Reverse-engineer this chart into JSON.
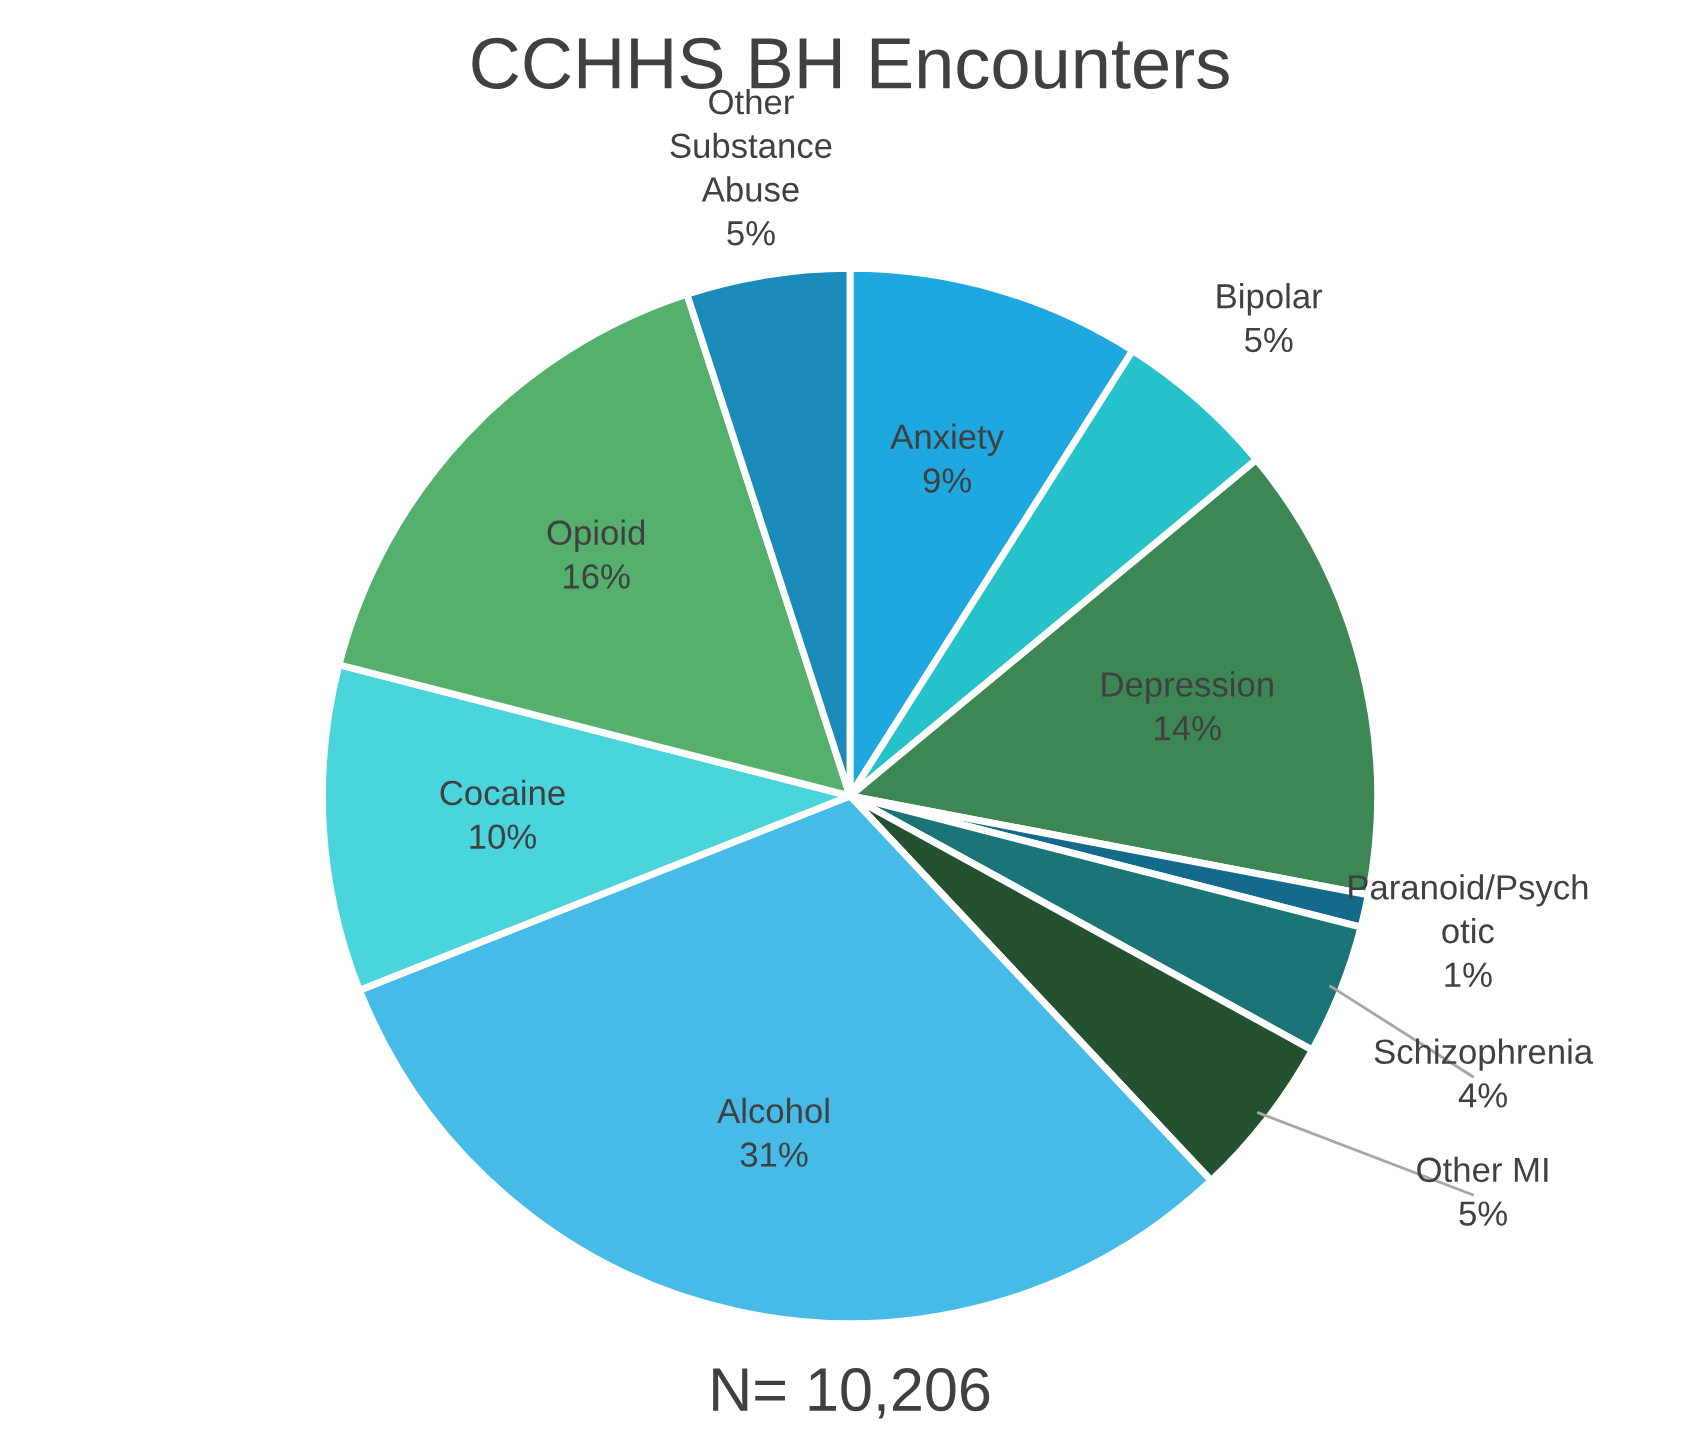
{
  "chart_data": {
    "type": "pie",
    "title": "CCHHS BH Encounters",
    "categories": [
      "Anxiety",
      "Bipolar",
      "Depression",
      "Paranoid/Psych\notic",
      "Schizophrenia",
      "Other MI",
      "Alcohol",
      "Cocaine",
      "Opioid",
      "Other\nSubstance\nAbuse"
    ],
    "values": [
      9,
      5,
      14,
      1,
      4,
      5,
      31,
      10,
      16,
      5
    ],
    "value_labels": [
      "9%",
      "5%",
      "14%",
      "1%",
      "4%",
      "5%",
      "31%",
      "10%",
      "16%",
      "5%"
    ],
    "colors": [
      "#1fa8e0",
      "#26c2c9",
      "#3c8754",
      "#136a8a",
      "#1b7576",
      "#245230",
      "#47bbe8",
      "#4ad4dc",
      "#55b06e",
      "#1a8ab8"
    ],
    "annotations": [
      "N= 10,206"
    ],
    "legend": false
  }
}
